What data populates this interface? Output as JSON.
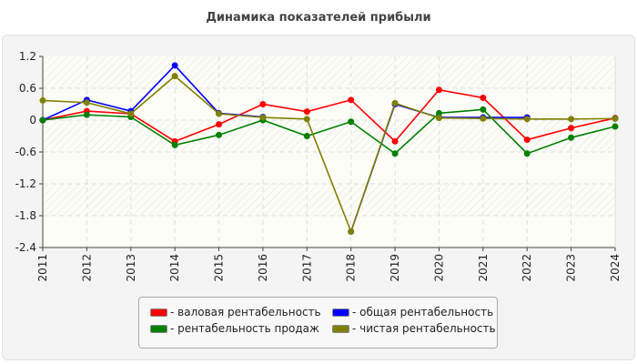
{
  "chart_data": {
    "type": "line",
    "title": "Динамика показателей прибыли",
    "x": [
      "2011",
      "2012",
      "2013",
      "2014",
      "2015",
      "2016",
      "2017",
      "2018",
      "2019",
      "2020",
      "2021",
      "2022",
      "2023",
      "2024"
    ],
    "yticks": [
      "1.2",
      "0.6",
      "0",
      "-0.6",
      "-1.2",
      "-1.8",
      "-2.4"
    ],
    "ylim": [
      -2.4,
      1.2
    ],
    "grid": true,
    "legend_position": "bottom",
    "series": [
      {
        "name": "- валовая рентабельность",
        "color": "#ff0000",
        "values": [
          0.0,
          0.17,
          0.12,
          -0.4,
          -0.08,
          0.3,
          0.16,
          0.38,
          -0.4,
          0.57,
          0.42,
          -0.37,
          -0.15,
          0.04
        ]
      },
      {
        "name": "- общая рентабельность",
        "color": "#0000ff",
        "values": [
          0.0,
          0.38,
          0.17,
          1.03,
          0.13,
          0.06,
          null,
          -2.1,
          0.3,
          0.05,
          0.05,
          0.05,
          null,
          0.03
        ]
      },
      {
        "name": "- рентабельность продаж",
        "color": "#008000",
        "values": [
          0.0,
          0.1,
          0.06,
          -0.47,
          -0.28,
          0.0,
          -0.3,
          -0.03,
          -0.63,
          0.13,
          0.2,
          -0.63,
          -0.33,
          -0.12
        ]
      },
      {
        "name": "- чистая рентабельность",
        "color": "#808000",
        "values": [
          0.37,
          0.33,
          0.12,
          0.83,
          0.12,
          0.05,
          0.02,
          -2.1,
          0.32,
          0.04,
          0.03,
          0.02,
          0.02,
          0.03
        ]
      }
    ]
  }
}
